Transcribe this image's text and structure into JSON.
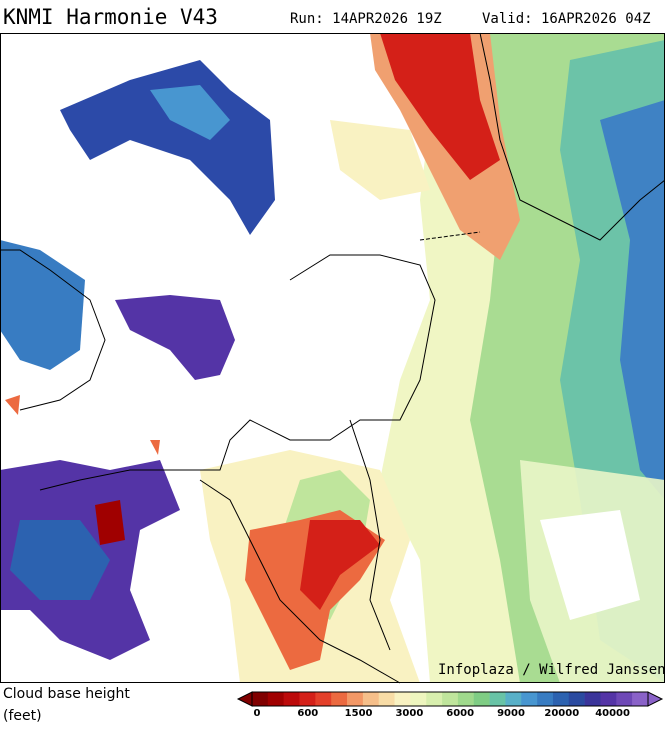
{
  "header": {
    "title": "KNMI Harmonie V43",
    "run": "Run: 14APR2026 19Z",
    "valid": "Valid: 16APR2026 04Z"
  },
  "map": {
    "credit": "Infoplaza / Wilfred Janssen"
  },
  "legend": {
    "label_line1": "Cloud base height",
    "label_line2": "(feet)",
    "colors": [
      "#800000",
      "#a00000",
      "#bc0a0a",
      "#d42018",
      "#e4402a",
      "#ec6a40",
      "#f39866",
      "#f6bf8a",
      "#f8dca6",
      "#f9f2c2",
      "#eef6bf",
      "#d8efae",
      "#bfe59c",
      "#9fd98c",
      "#7fcd84",
      "#68c3a6",
      "#58b0c8",
      "#4896d0",
      "#387cc2",
      "#2c62b0",
      "#2a4aa0",
      "#3a349a",
      "#5434a6",
      "#6e48b6",
      "#8a62c8"
    ],
    "ticks": [
      0,
      600,
      1500,
      3000,
      6000,
      9000,
      20000,
      40000
    ]
  }
}
